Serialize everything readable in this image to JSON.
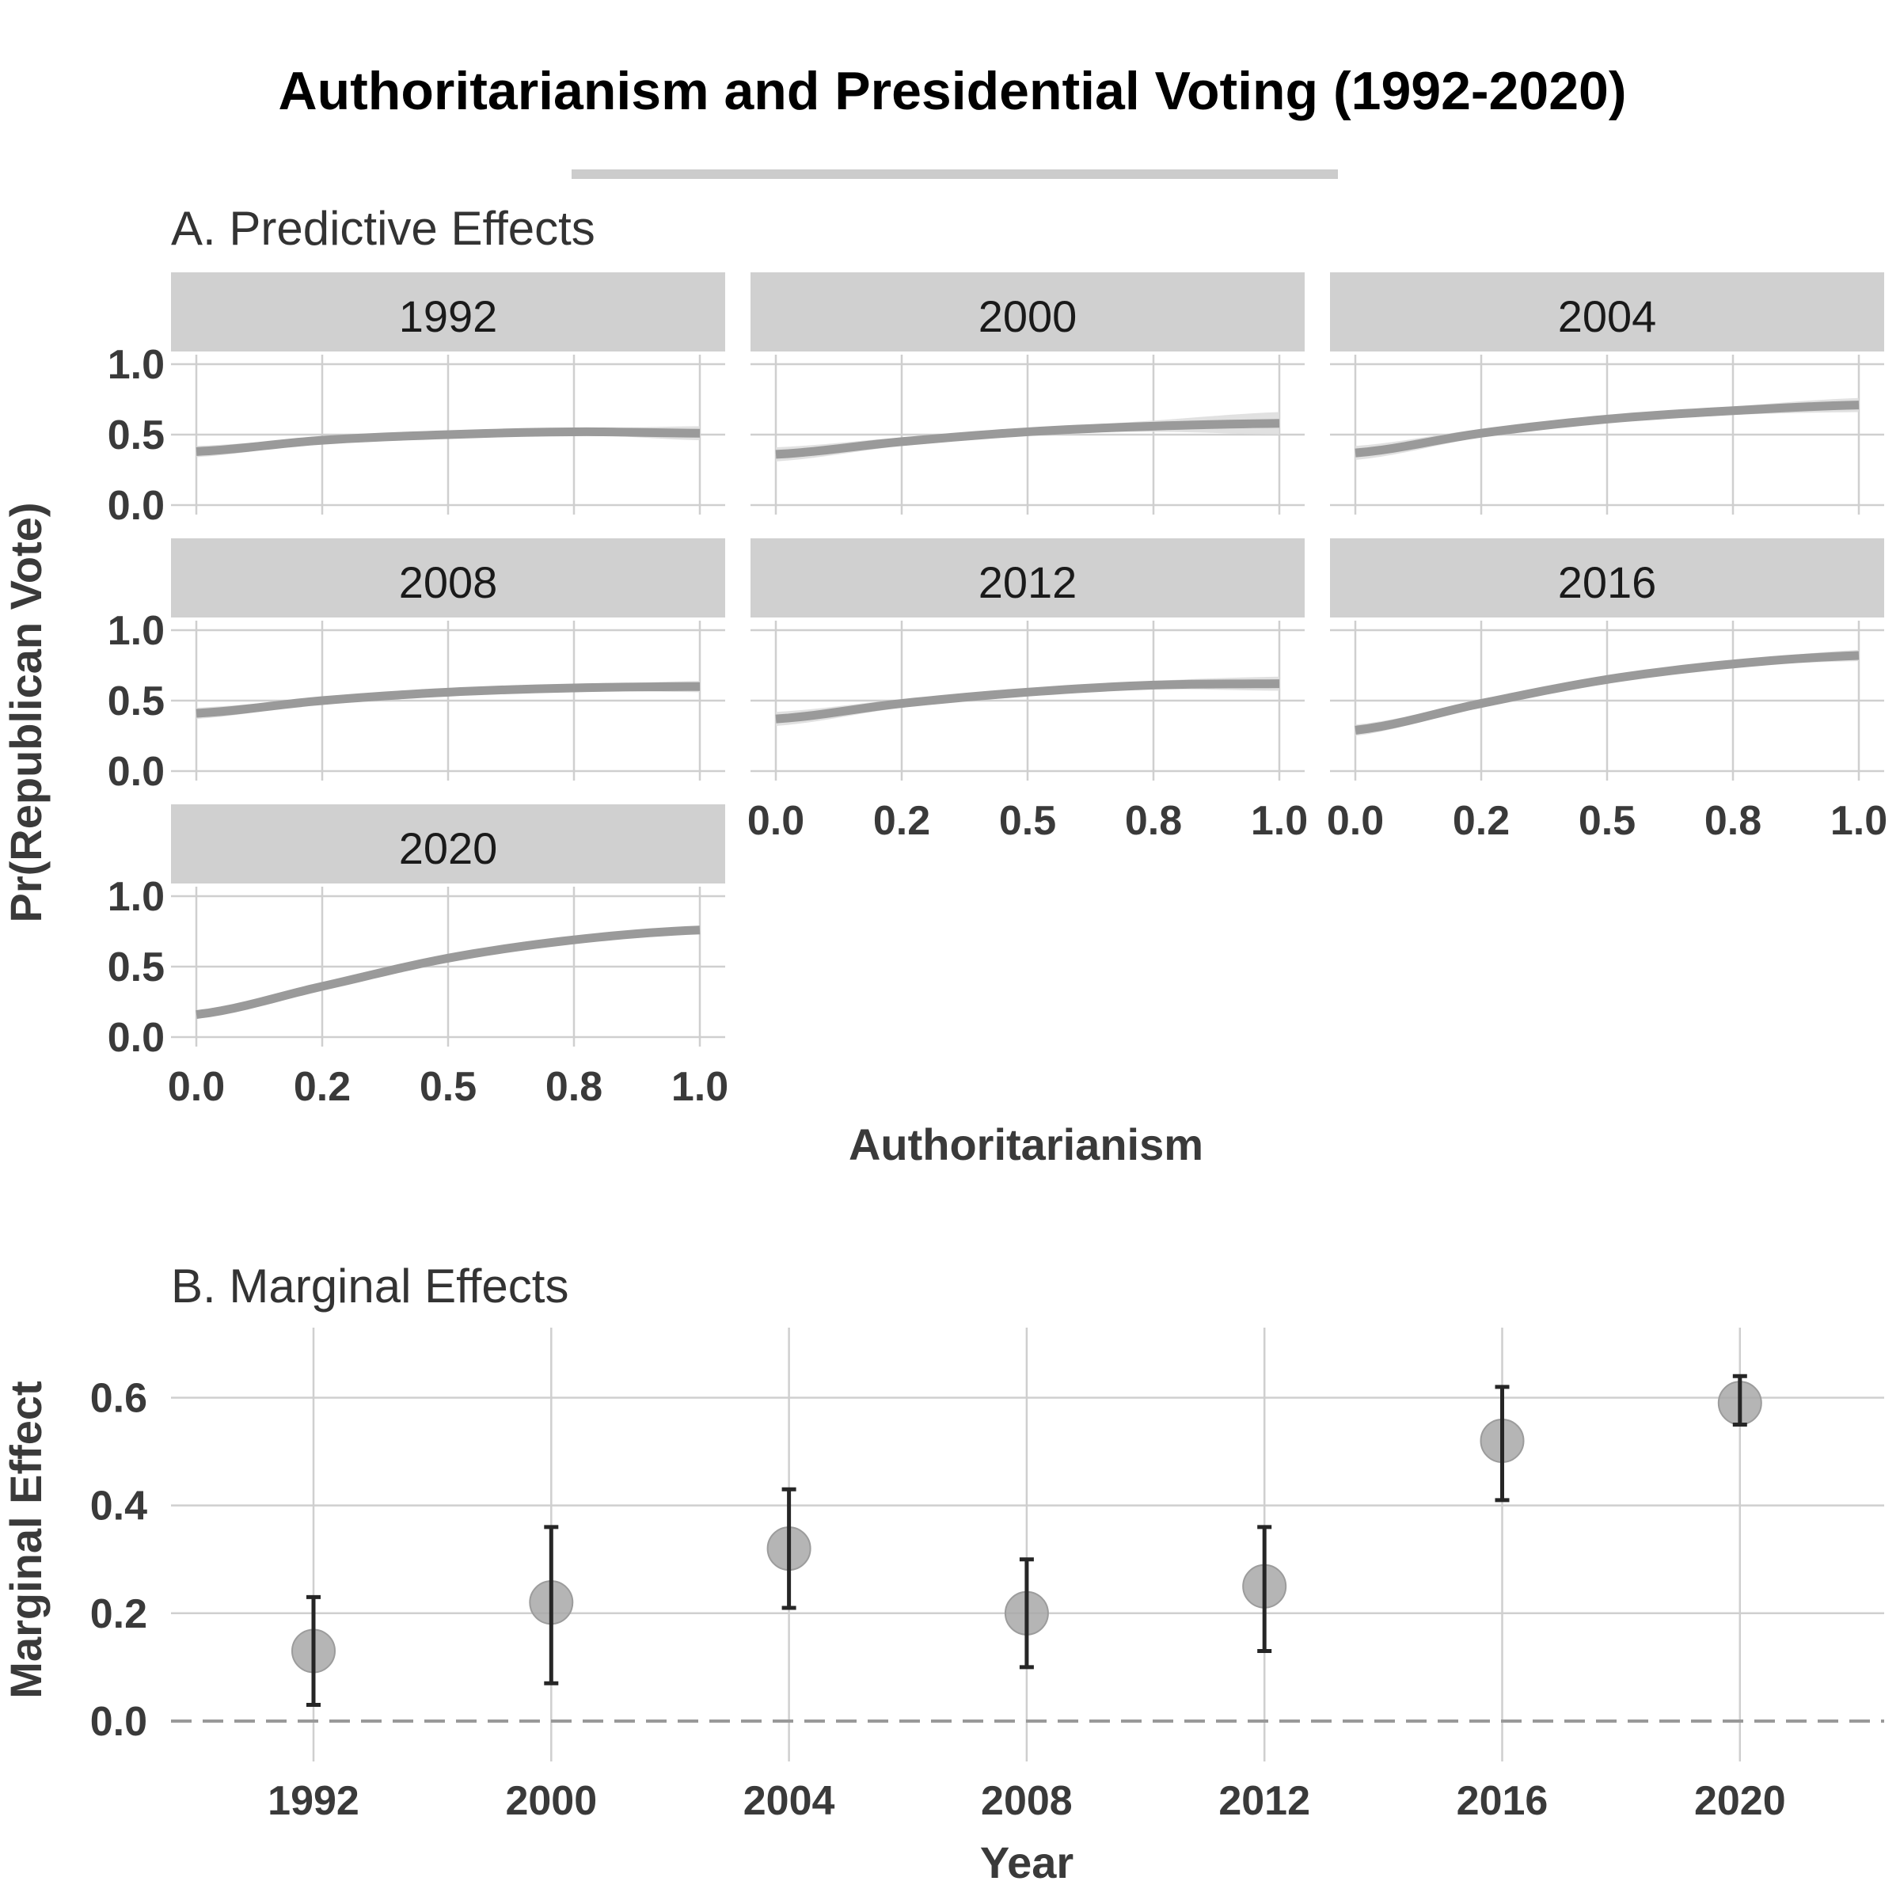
{
  "title": "Authoritarianism and Presidential Voting (1992-2020)",
  "colors": {
    "line": "#9a9a9a",
    "ribbon": "#dcdcdc",
    "strip": "#d0d0d0",
    "point": "#a8a8a8",
    "errorbar": "#262626",
    "zero_line": "#999999",
    "title_rule": "#cccccc"
  },
  "chart_data": [
    {
      "type": "line",
      "panel_title": "A. Predictive Effects",
      "xlabel": "Authoritarianism",
      "ylabel": "Pr(Republican Vote)",
      "xlim": [
        0,
        1
      ],
      "ylim": [
        0,
        1
      ],
      "x_ticks": [
        0,
        0.25,
        0.5,
        0.75,
        1
      ],
      "x_tick_labels": [
        "0.0",
        "0.2",
        "0.5",
        "0.8",
        "1.0"
      ],
      "y_ticks": [
        0,
        0.5,
        1
      ],
      "y_tick_labels": [
        "0.0",
        "0.5",
        "1.0"
      ],
      "grid": true,
      "x": [
        0,
        0.25,
        0.5,
        0.75,
        1
      ],
      "facets": [
        {
          "label": "1992",
          "y": [
            0.38,
            0.46,
            0.5,
            0.52,
            0.51
          ],
          "ci": [
            0.04,
            0.02,
            0.02,
            0.02,
            0.05
          ]
        },
        {
          "label": "2000",
          "y": [
            0.36,
            0.45,
            0.52,
            0.56,
            0.58
          ],
          "ci": [
            0.05,
            0.03,
            0.02,
            0.04,
            0.08
          ]
        },
        {
          "label": "2004",
          "y": [
            0.37,
            0.51,
            0.61,
            0.67,
            0.71
          ],
          "ci": [
            0.05,
            0.03,
            0.02,
            0.03,
            0.05
          ]
        },
        {
          "label": "2008",
          "y": [
            0.41,
            0.5,
            0.56,
            0.59,
            0.6
          ],
          "ci": [
            0.04,
            0.02,
            0.02,
            0.02,
            0.04
          ]
        },
        {
          "label": "2012",
          "y": [
            0.37,
            0.48,
            0.56,
            0.61,
            0.62
          ],
          "ci": [
            0.05,
            0.03,
            0.02,
            0.03,
            0.05
          ]
        },
        {
          "label": "2016",
          "y": [
            0.29,
            0.48,
            0.65,
            0.76,
            0.82
          ],
          "ci": [
            0.04,
            0.02,
            0.02,
            0.02,
            0.04
          ]
        },
        {
          "label": "2020",
          "y": [
            0.16,
            0.36,
            0.56,
            0.69,
            0.76
          ],
          "ci": [
            0.02,
            0.01,
            0.01,
            0.01,
            0.02
          ]
        }
      ]
    },
    {
      "type": "scatter",
      "panel_title": "B. Marginal Effects",
      "xlabel": "Year",
      "ylabel": "Marginal Effect",
      "categories": [
        "1992",
        "2000",
        "2004",
        "2008",
        "2012",
        "2016",
        "2020"
      ],
      "values": [
        0.13,
        0.22,
        0.32,
        0.2,
        0.25,
        0.52,
        0.59
      ],
      "ci_low": [
        0.03,
        0.07,
        0.21,
        0.1,
        0.13,
        0.41,
        0.55
      ],
      "ci_high": [
        0.23,
        0.36,
        0.43,
        0.3,
        0.36,
        0.62,
        0.64
      ],
      "ylim": [
        -0.075,
        0.73
      ],
      "y_ticks": [
        0,
        0.2,
        0.4,
        0.6
      ],
      "y_tick_labels": [
        "0.0",
        "0.2",
        "0.4",
        "0.6"
      ],
      "reference_line": 0,
      "grid": true
    }
  ]
}
